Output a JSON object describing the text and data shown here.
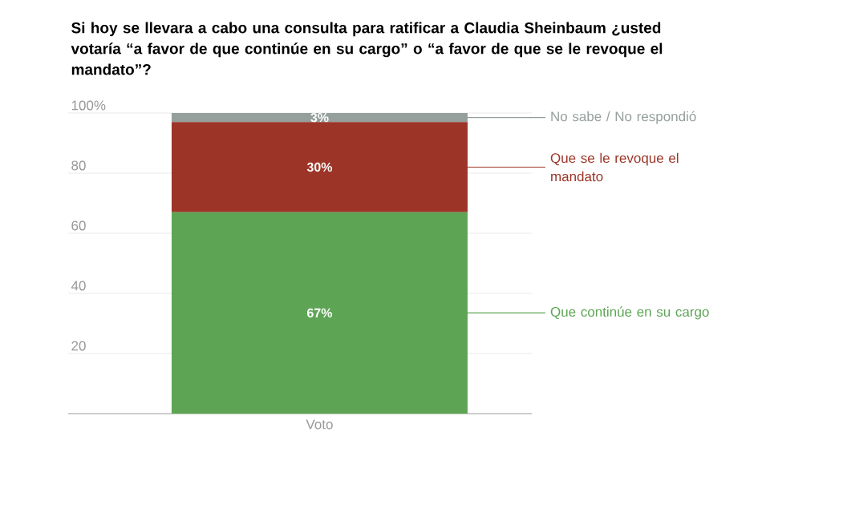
{
  "chart_data": {
    "type": "bar",
    "title": "Si hoy se llevara a cabo una consulta para ratificar a Claudia Sheinbaum ¿usted votaría “a favor de que continúe en su cargo” o “a favor de que se le revoque el mandato”?",
    "categories": [
      "Voto"
    ],
    "stacked": true,
    "series": [
      {
        "name": "Que continúe en su cargo",
        "color": "#5da554",
        "values": [
          67
        ],
        "value_labels": [
          "67%"
        ]
      },
      {
        "name": "Que se le revoque el mandato",
        "color": "#9c3528",
        "values": [
          30
        ],
        "value_labels": [
          "30%"
        ]
      },
      {
        "name": "No sabe / No respondió",
        "color": "#95a09c",
        "values": [
          3
        ],
        "value_labels": [
          "3%"
        ]
      }
    ],
    "ylim": [
      0,
      100
    ],
    "yticks": [
      20,
      40,
      60,
      80,
      {
        "value": 100,
        "label": "100%"
      }
    ],
    "grid": "y",
    "legend": "right"
  }
}
